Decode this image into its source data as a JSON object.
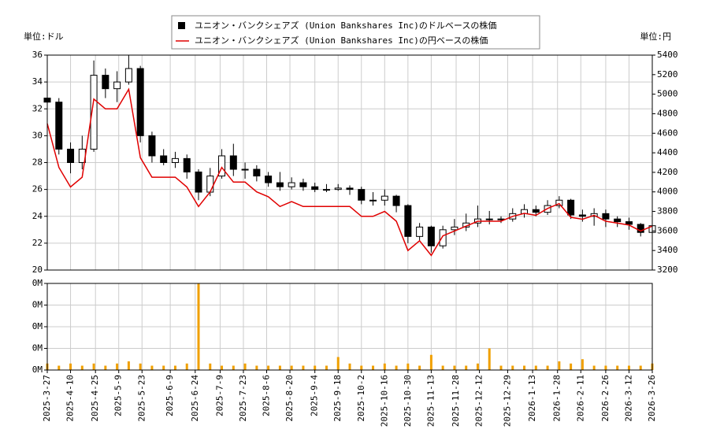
{
  "chart_data": [
    {
      "type": "candlestick",
      "ylabel": "単位:ドル",
      "y2label": "単位:円",
      "x": [
        "2025-3-27",
        "2025-4-3",
        "2025-4-10",
        "2025-4-17",
        "2025-4-24",
        "2025-5-1",
        "2025-5-8",
        "2025-5-15",
        "2025-5-22",
        "2025-5-29",
        "2025-6-5",
        "2025-6-12",
        "2025-6-19",
        "2025-6-26",
        "2025-7-3",
        "2025-7-10",
        "2025-7-17",
        "2025-7-24",
        "2025-7-31",
        "2025-8-7",
        "2025-8-14",
        "2025-8-21",
        "2025-8-28",
        "2025-9-4",
        "2025-9-11",
        "2025-9-18",
        "2025-9-25",
        "2025-10-2",
        "2025-10-9",
        "2025-10-16",
        "2025-10-23",
        "2025-10-30",
        "2025-11-6",
        "2025-11-13",
        "2025-11-20",
        "2025-11-27",
        "2025-12-4",
        "2025-12-11",
        "2025-12-18",
        "2025-12-25",
        "2026-1-1",
        "2026-1-8",
        "2026-1-15",
        "2026-1-22",
        "2026-1-29",
        "2026-2-5",
        "2026-2-12",
        "2026-2-19",
        "2026-2-26",
        "2026-3-5",
        "2026-3-12",
        "2026-3-19",
        "2026-3-26"
      ],
      "xlim": [
        "2025-3-27",
        "2026-3-26"
      ],
      "series": [
        {
          "name": "ユニオン・バンクシェアズ (Union Bankshares Inc)のドルベースの株価",
          "color": "#000000",
          "open": [
            32.8,
            32.5,
            29,
            28,
            29,
            34.5,
            33.5,
            34,
            35,
            30,
            28.5,
            28,
            28.3,
            27.3,
            25.8,
            27,
            28.5,
            27.5,
            27.5,
            27,
            26.5,
            26.2,
            26.5,
            26.2,
            26,
            26,
            26.1,
            26,
            25.2,
            25.2,
            25.5,
            24.8,
            22.5,
            23.2,
            21.8,
            23,
            23.2,
            23.5,
            23.8,
            23.8,
            23.8,
            24.2,
            24.5,
            24.3,
            24.8,
            25.2,
            24.1,
            24,
            24.2,
            23.8,
            23.6,
            23.4,
            22.8
          ],
          "high": [
            33.2,
            32.8,
            29.5,
            30,
            35.6,
            35,
            34.8,
            36,
            35.2,
            30.3,
            29,
            28.8,
            28.6,
            27.5,
            27.6,
            29,
            29.4,
            28,
            27.8,
            27.3,
            27.3,
            26.9,
            26.8,
            26.5,
            26.4,
            26.4,
            26.3,
            26.2,
            25.8,
            26,
            25.6,
            24.9,
            23.5,
            23.3,
            23.3,
            23.8,
            24.2,
            24.8,
            24.4,
            24,
            24.6,
            24.9,
            24.8,
            25.2,
            25.5,
            25.3,
            24.5,
            24.6,
            24.5,
            24,
            23.9,
            23.5,
            23.6
          ],
          "low": [
            31.8,
            28.6,
            27.2,
            27.5,
            28.8,
            32.8,
            32.5,
            33.8,
            29.5,
            28,
            27.8,
            27.6,
            26.8,
            25.2,
            25.5,
            26.8,
            27,
            26.8,
            26.6,
            26.2,
            25.9,
            26,
            25.9,
            25.8,
            25.8,
            25.9,
            25.6,
            24.9,
            24.8,
            24.8,
            24.3,
            22,
            22.2,
            21.3,
            21.6,
            22.6,
            22.9,
            23.2,
            23.4,
            23.5,
            23.6,
            23.9,
            24,
            24.1,
            24.6,
            23.8,
            23.6,
            23.3,
            23.2,
            23.2,
            23,
            22.5,
            22.6
          ],
          "close": [
            32.5,
            29,
            28,
            29,
            34.5,
            33.5,
            34,
            35,
            30,
            28.5,
            28,
            28.3,
            27.3,
            25.8,
            27,
            28.5,
            27.5,
            27.5,
            27,
            26.5,
            26.2,
            26.5,
            26.2,
            26,
            26,
            26.1,
            26,
            25.2,
            25.2,
            25.5,
            24.8,
            22.5,
            23.2,
            21.8,
            23,
            23.2,
            23.5,
            23.8,
            23.8,
            23.8,
            24.2,
            24.5,
            24.3,
            24.8,
            25.2,
            24.1,
            24,
            24.2,
            23.8,
            23.6,
            23.4,
            22.8,
            23.3
          ]
        },
        {
          "name": "ユニオン・バンクシェアズ (Union Bankshares Inc)の円ベースの株価",
          "color": "#e00000",
          "axis": "y2",
          "values": [
            4700,
            4250,
            4050,
            4150,
            4950,
            4850,
            4850,
            5050,
            4350,
            4150,
            4150,
            4150,
            4050,
            3850,
            4000,
            4250,
            4100,
            4100,
            4000,
            3950,
            3850,
            3900,
            3850,
            3850,
            3850,
            3850,
            3850,
            3750,
            3750,
            3800,
            3700,
            3400,
            3500,
            3350,
            3550,
            3600,
            3650,
            3700,
            3700,
            3700,
            3750,
            3780,
            3760,
            3830,
            3880,
            3740,
            3720,
            3760,
            3700,
            3680,
            3660,
            3600,
            3650
          ]
        }
      ],
      "ylim": [
        20,
        36
      ],
      "yticks": [
        20,
        22,
        24,
        26,
        28,
        30,
        32,
        34,
        36
      ],
      "y2lim": [
        3200,
        5400
      ],
      "y2ticks": [
        3200,
        3400,
        3600,
        3800,
        4000,
        4200,
        4400,
        4600,
        4800,
        5000,
        5200,
        5400
      ],
      "grid": true
    },
    {
      "type": "bar",
      "color": "#f0a000",
      "x": [
        "2025-3-27",
        "2025-4-3",
        "2025-4-10",
        "2025-4-17",
        "2025-4-24",
        "2025-5-1",
        "2025-5-8",
        "2025-5-15",
        "2025-5-22",
        "2025-5-29",
        "2025-6-5",
        "2025-6-12",
        "2025-6-19",
        "2025-6-26",
        "2025-7-3",
        "2025-7-10",
        "2025-7-17",
        "2025-7-24",
        "2025-7-31",
        "2025-8-7",
        "2025-8-14",
        "2025-8-21",
        "2025-8-28",
        "2025-9-4",
        "2025-9-11",
        "2025-9-18",
        "2025-9-25",
        "2025-10-2",
        "2025-10-9",
        "2025-10-16",
        "2025-10-23",
        "2025-10-30",
        "2025-11-6",
        "2025-11-13",
        "2025-11-20",
        "2025-11-27",
        "2025-12-4",
        "2025-12-11",
        "2025-12-18",
        "2025-12-25",
        "2026-1-1",
        "2026-1-8",
        "2026-1-15",
        "2026-1-22",
        "2026-1-29",
        "2026-2-5",
        "2026-2-12",
        "2026-2-19",
        "2026-2-26",
        "2026-3-5",
        "2026-3-12",
        "2026-3-19",
        "2026-3-26"
      ],
      "xlim": [
        "2025-3-27",
        "2026-3-26"
      ],
      "values": [
        0.003,
        0.002,
        0.003,
        0.002,
        0.003,
        0.002,
        0.003,
        0.004,
        0.003,
        0.002,
        0.002,
        0.002,
        0.003,
        0.04,
        0.003,
        0.002,
        0.002,
        0.003,
        0.002,
        0.002,
        0.002,
        0.002,
        0.002,
        0.002,
        0.002,
        0.006,
        0.003,
        0.002,
        0.002,
        0.003,
        0.002,
        0.003,
        0.002,
        0.007,
        0.002,
        0.002,
        0.002,
        0.003,
        0.01,
        0.002,
        0.002,
        0.002,
        0.002,
        0.002,
        0.004,
        0.003,
        0.005,
        0.002,
        0.002,
        0.002,
        0.002,
        0.002,
        0.003
      ],
      "ylim": [
        0,
        0.04
      ],
      "yticks": [
        {
          "value": 0,
          "label": "0M"
        },
        {
          "value": 0.01,
          "label": "0M"
        },
        {
          "value": 0.02,
          "label": "0M"
        },
        {
          "value": 0.03,
          "label": "0M"
        },
        {
          "value": 0.04,
          "label": "0M"
        }
      ],
      "xticks": [
        "2025-3-27",
        "2025-4-10",
        "2025-4-25",
        "2025-5-9",
        "2025-5-23",
        "2025-6-9",
        "2025-6-24",
        "2025-7-9",
        "2025-7-23",
        "2025-8-6",
        "2025-8-20",
        "2025-9-4",
        "2025-9-18",
        "2025-10-2",
        "2025-10-16",
        "2025-10-30",
        "2025-11-13",
        "2025-11-28",
        "2025-12-12",
        "2025-12-29",
        "2026-1-13",
        "2026-1-28",
        "2026-2-11",
        "2026-2-26",
        "2026-3-12",
        "2026-3-26"
      ],
      "grid": true
    }
  ]
}
